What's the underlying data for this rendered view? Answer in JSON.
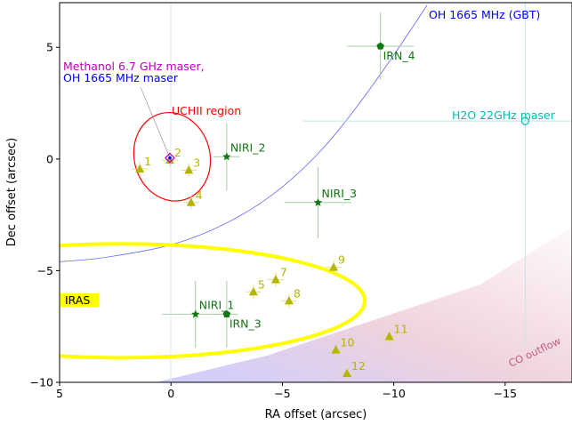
{
  "chart_data": {
    "type": "scatter",
    "xlabel": "RA offset (arcsec)",
    "ylabel": "Dec offset (arcsec)",
    "xlim": [
      5,
      -18
    ],
    "ylim": [
      -10,
      7
    ],
    "x_inverted": true,
    "grid": false,
    "xticks": [
      {
        "v": 5,
        "label": "5"
      },
      {
        "v": 0,
        "label": "0"
      },
      {
        "v": -5,
        "label": "−5"
      },
      {
        "v": -10,
        "label": "−10"
      },
      {
        "v": -15,
        "label": "−15"
      }
    ],
    "yticks": [
      {
        "v": 5,
        "label": "5"
      },
      {
        "v": 0,
        "label": "0"
      },
      {
        "v": -5,
        "label": "−5"
      },
      {
        "v": -10,
        "label": "−10"
      }
    ],
    "colors": {
      "triangles": "#b5b500",
      "sources": "#117711",
      "uchii": "#ff0000",
      "iras": "#ffff00",
      "oh_gbt": "#0000ff",
      "water": "#00bbbb",
      "methanol": "#bb00bb",
      "oh_maser": "#0000ff",
      "co_outflow": "#c06080"
    },
    "triangles": [
      {
        "label": "1",
        "x": 1.4,
        "y": -0.45
      },
      {
        "label": "2",
        "x": 0.05,
        "y": -0.05
      },
      {
        "label": "3",
        "x": -0.8,
        "y": -0.5
      },
      {
        "label": "4",
        "x": -0.9,
        "y": -1.95
      },
      {
        "label": "5",
        "x": -3.7,
        "y": -5.95
      },
      {
        "label": "7",
        "x": -4.7,
        "y": -5.4
      },
      {
        "label": "8",
        "x": -5.3,
        "y": -6.35
      },
      {
        "label": "9",
        "x": -7.3,
        "y": -4.85
      },
      {
        "label": "10",
        "x": -7.4,
        "y": -8.55
      },
      {
        "label": "11",
        "x": -9.8,
        "y": -7.95
      },
      {
        "label": "12",
        "x": -7.9,
        "y": -9.6
      }
    ],
    "sources": [
      {
        "label": "NIRI_2",
        "x": -2.5,
        "y": 0.1,
        "marker": "star",
        "xerr": 0.6,
        "yerr": 1.5
      },
      {
        "label": "NIRI_3",
        "x": -6.6,
        "y": -1.95,
        "marker": "star",
        "xerr": 1.5,
        "yerr": 1.6
      },
      {
        "label": "NIRI_1",
        "x": -1.1,
        "y": -6.95,
        "marker": "star",
        "xerr": 1.5,
        "yerr": 1.5
      },
      {
        "label": "IRN_4",
        "x": -9.4,
        "y": 5.05,
        "marker": "pentagon",
        "xerr": 1.5,
        "yerr": 1.5
      },
      {
        "label": "IRN_3",
        "x": -2.5,
        "y": -6.95,
        "marker": "pentagon",
        "xerr": 0.5,
        "yerr": 1.5
      }
    ],
    "annotations": {
      "uchii": "UCHII region",
      "iras": "IRAS",
      "methanol": "Methanol 6.7 GHz maser,",
      "oh_maser": "OH 1665 MHz maser",
      "oh_gbt": "OH 1665 MHz (GBT)",
      "water": "H2O 22GHz maser",
      "co": "CO outflow"
    },
    "uchii_ellipse": {
      "cx": -0.05,
      "cy": 0.1,
      "rx": 1.7,
      "ry": 2.0
    },
    "iras_ellipse": {
      "cx": 2.2,
      "cy": -6.35,
      "rx": 10.9,
      "ry": 2.55
    },
    "methanol_maser": {
      "x": 0.05,
      "y": 0.05
    },
    "water_maser": {
      "x": -15.9,
      "y": 1.7,
      "xerr": 10,
      "yerr": 10
    },
    "oh_gbt_arc": [
      [
        -11.5,
        6.9
      ],
      [
        -8.5,
        2.3
      ],
      [
        -5,
        -1.5
      ],
      [
        -1,
        -3.7
      ],
      [
        3,
        -4.45
      ],
      [
        5,
        -4.6
      ]
    ]
  }
}
